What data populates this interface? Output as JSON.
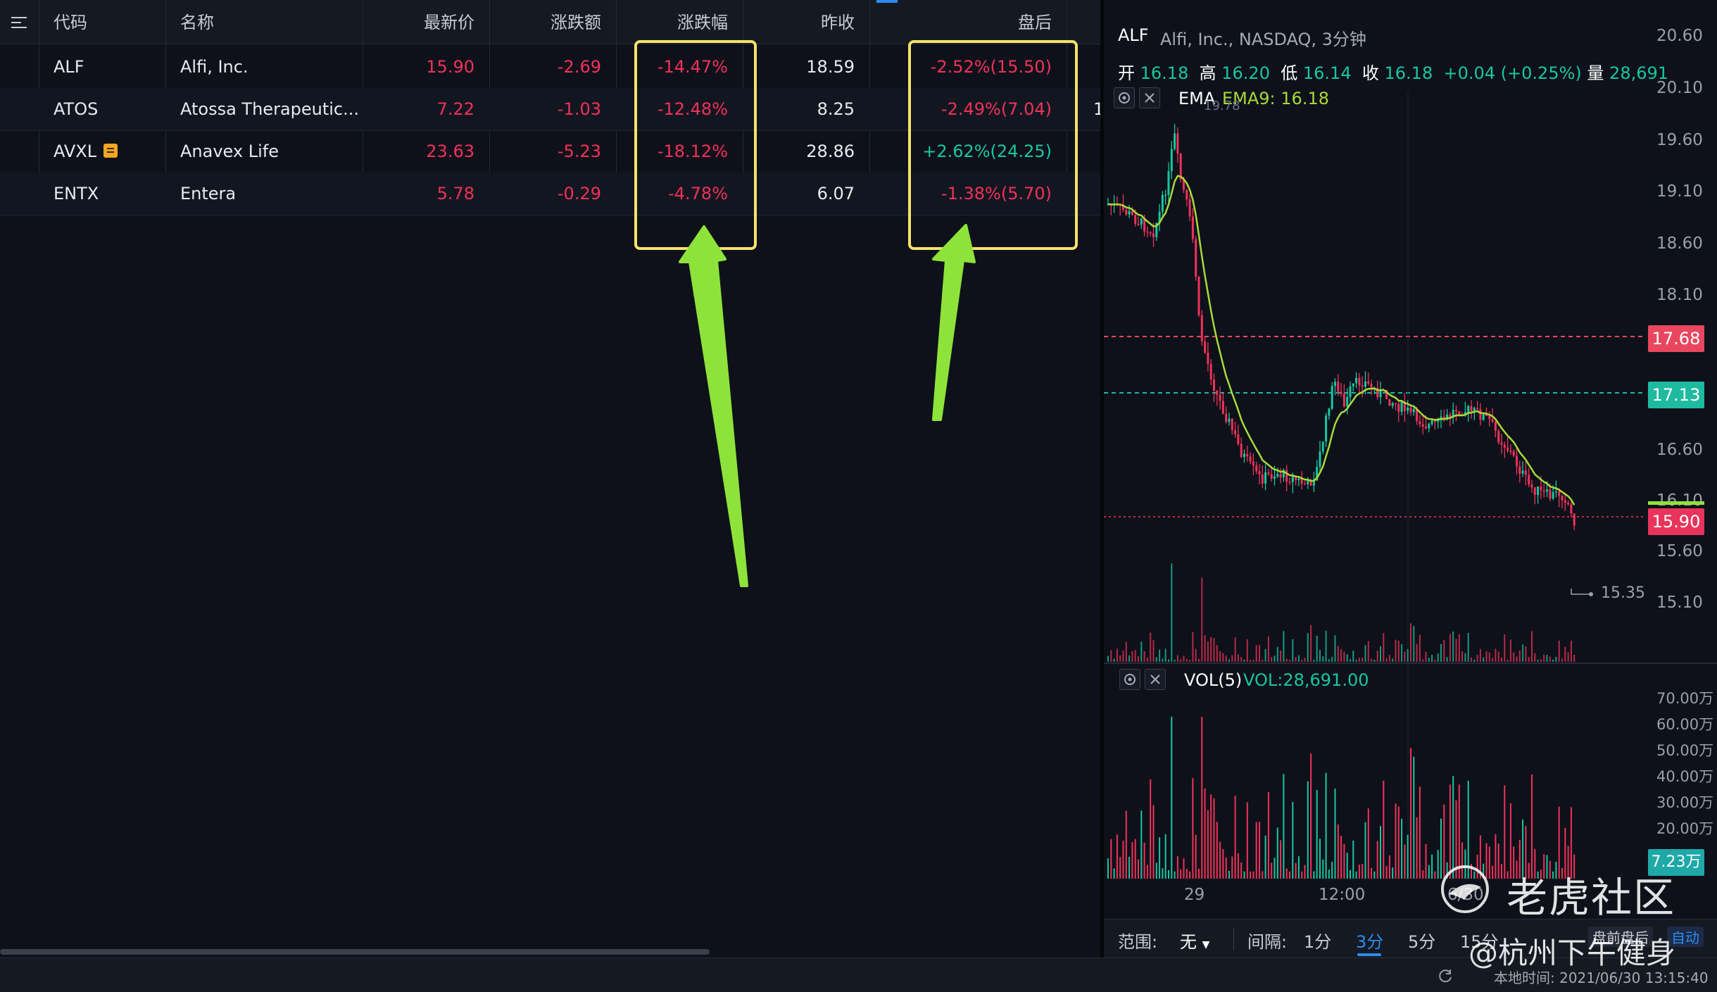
{
  "table": {
    "headers": {
      "code": "代码",
      "name": "名称",
      "last": "最新价",
      "change": "涨跌额",
      "change_pct": "涨跌幅",
      "prev_close": "昨收",
      "after_hours": "盘后"
    },
    "rows": [
      {
        "code": "ALF",
        "name": "Alfi, Inc.",
        "last": "15.90",
        "change": "-2.69",
        "change_pct": "-14.47%",
        "prev_close": "18.59",
        "after_hours": "-2.52%(15.50)",
        "after_dir": "down",
        "extra": ""
      },
      {
        "code": "ATOS",
        "name": "Atossa Therapeutic...",
        "last": "7.22",
        "change": "-1.03",
        "change_pct": "-12.48%",
        "prev_close": "8.25",
        "after_hours": "-2.49%(7.04)",
        "after_dir": "down",
        "extra": "1"
      },
      {
        "code": "AVXL",
        "name": "Anavex Life",
        "last": "23.63",
        "change": "-5.23",
        "change_pct": "-18.12%",
        "prev_close": "28.86",
        "after_hours": "+2.62%(24.25)",
        "after_dir": "up",
        "extra": ""
      },
      {
        "code": "ENTX",
        "name": "Entera",
        "last": "5.78",
        "change": "-0.29",
        "change_pct": "-4.78%",
        "prev_close": "6.07",
        "after_hours": "-1.38%(5.70)",
        "after_dir": "down",
        "extra": ""
      }
    ]
  },
  "chart": {
    "symbol": "ALF",
    "company": "Alfi, Inc., NASDAQ, 3分钟",
    "ohlc": {
      "open_label": "开",
      "open": "16.18",
      "high_label": "高",
      "high": "16.20",
      "low_label": "低",
      "low": "16.14",
      "close_label": "收",
      "close": "16.18",
      "chg": "+0.04 (+0.25%)",
      "vol_label": "量",
      "vol": "28,691"
    },
    "ema_label": "EMA",
    "ema_value": "EMA9: 16.18",
    "vol_label": "VOL(5)",
    "vol_value": "VOL:28,691.00",
    "price_axis": [
      "20.60",
      "20.10",
      "19.60",
      "19.10",
      "18.60",
      "18.10",
      "16.60",
      "16.10",
      "15.60",
      "15.10"
    ],
    "tag_prev": "17.68",
    "tag_mid": "17.13",
    "tag_last": "15.90",
    "low_marker": "15.35",
    "high_marker": "19.78",
    "vol_axis": [
      "70.00万",
      "60.00万",
      "50.00万",
      "40.00万",
      "30.00万",
      "20.00万"
    ],
    "vol_tag": "7.23万",
    "time_axis": [
      "29",
      "12:00",
      "6/30"
    ],
    "controls": {
      "range_label": "范围:",
      "range_value": "无",
      "interval_label": "间隔:",
      "intervals": [
        "1分",
        "3分",
        "5分",
        "15分"
      ],
      "session": "盘前盘后",
      "auto": "自动"
    },
    "colors": {
      "up": "#18c7a0",
      "down": "#f0325a",
      "ema": "#a8d93a"
    }
  },
  "status": {
    "local_time": "本地时间: 2021/06/30 13:15:40"
  },
  "watermark": {
    "brand": "老虎社区",
    "author": "@杭州下午健身"
  }
}
